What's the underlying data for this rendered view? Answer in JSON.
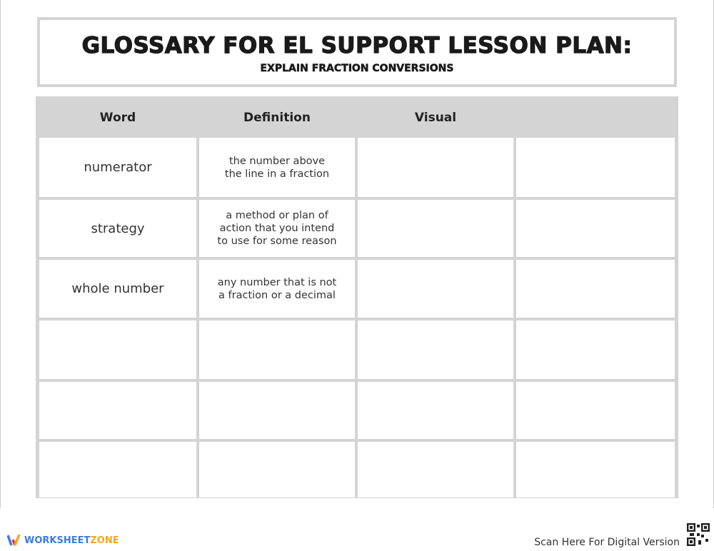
{
  "title": "GLOSSARY FOR EL SUPPORT LESSON PLAN:",
  "subtitle": "EXPLAIN FRACTION CONVERSIONS",
  "table": {
    "headers": [
      "Word",
      "Definition",
      "Visual",
      ""
    ],
    "rows": [
      {
        "word": "numerator",
        "definition": "the number above\nthe line in a fraction",
        "visual": "",
        "extra": ""
      },
      {
        "word": "strategy",
        "definition": "a method or plan of\naction that you intend\nto use for some reason",
        "visual": "",
        "extra": ""
      },
      {
        "word": "whole number",
        "definition": "any number that is not\na fraction or a decimal",
        "visual": "",
        "extra": ""
      },
      {
        "word": "",
        "definition": "",
        "visual": "",
        "extra": ""
      },
      {
        "word": "",
        "definition": "",
        "visual": "",
        "extra": ""
      },
      {
        "word": "",
        "definition": "",
        "visual": "",
        "extra": ""
      }
    ]
  },
  "footer": {
    "brand_part1": "WORKSHEET",
    "brand_part2": "ZONE",
    "scan_text": "Scan Here For Digital Version",
    "brand_colors": {
      "blue": "#3b7be0",
      "orange": "#f5a623",
      "red": "#e53935"
    }
  }
}
